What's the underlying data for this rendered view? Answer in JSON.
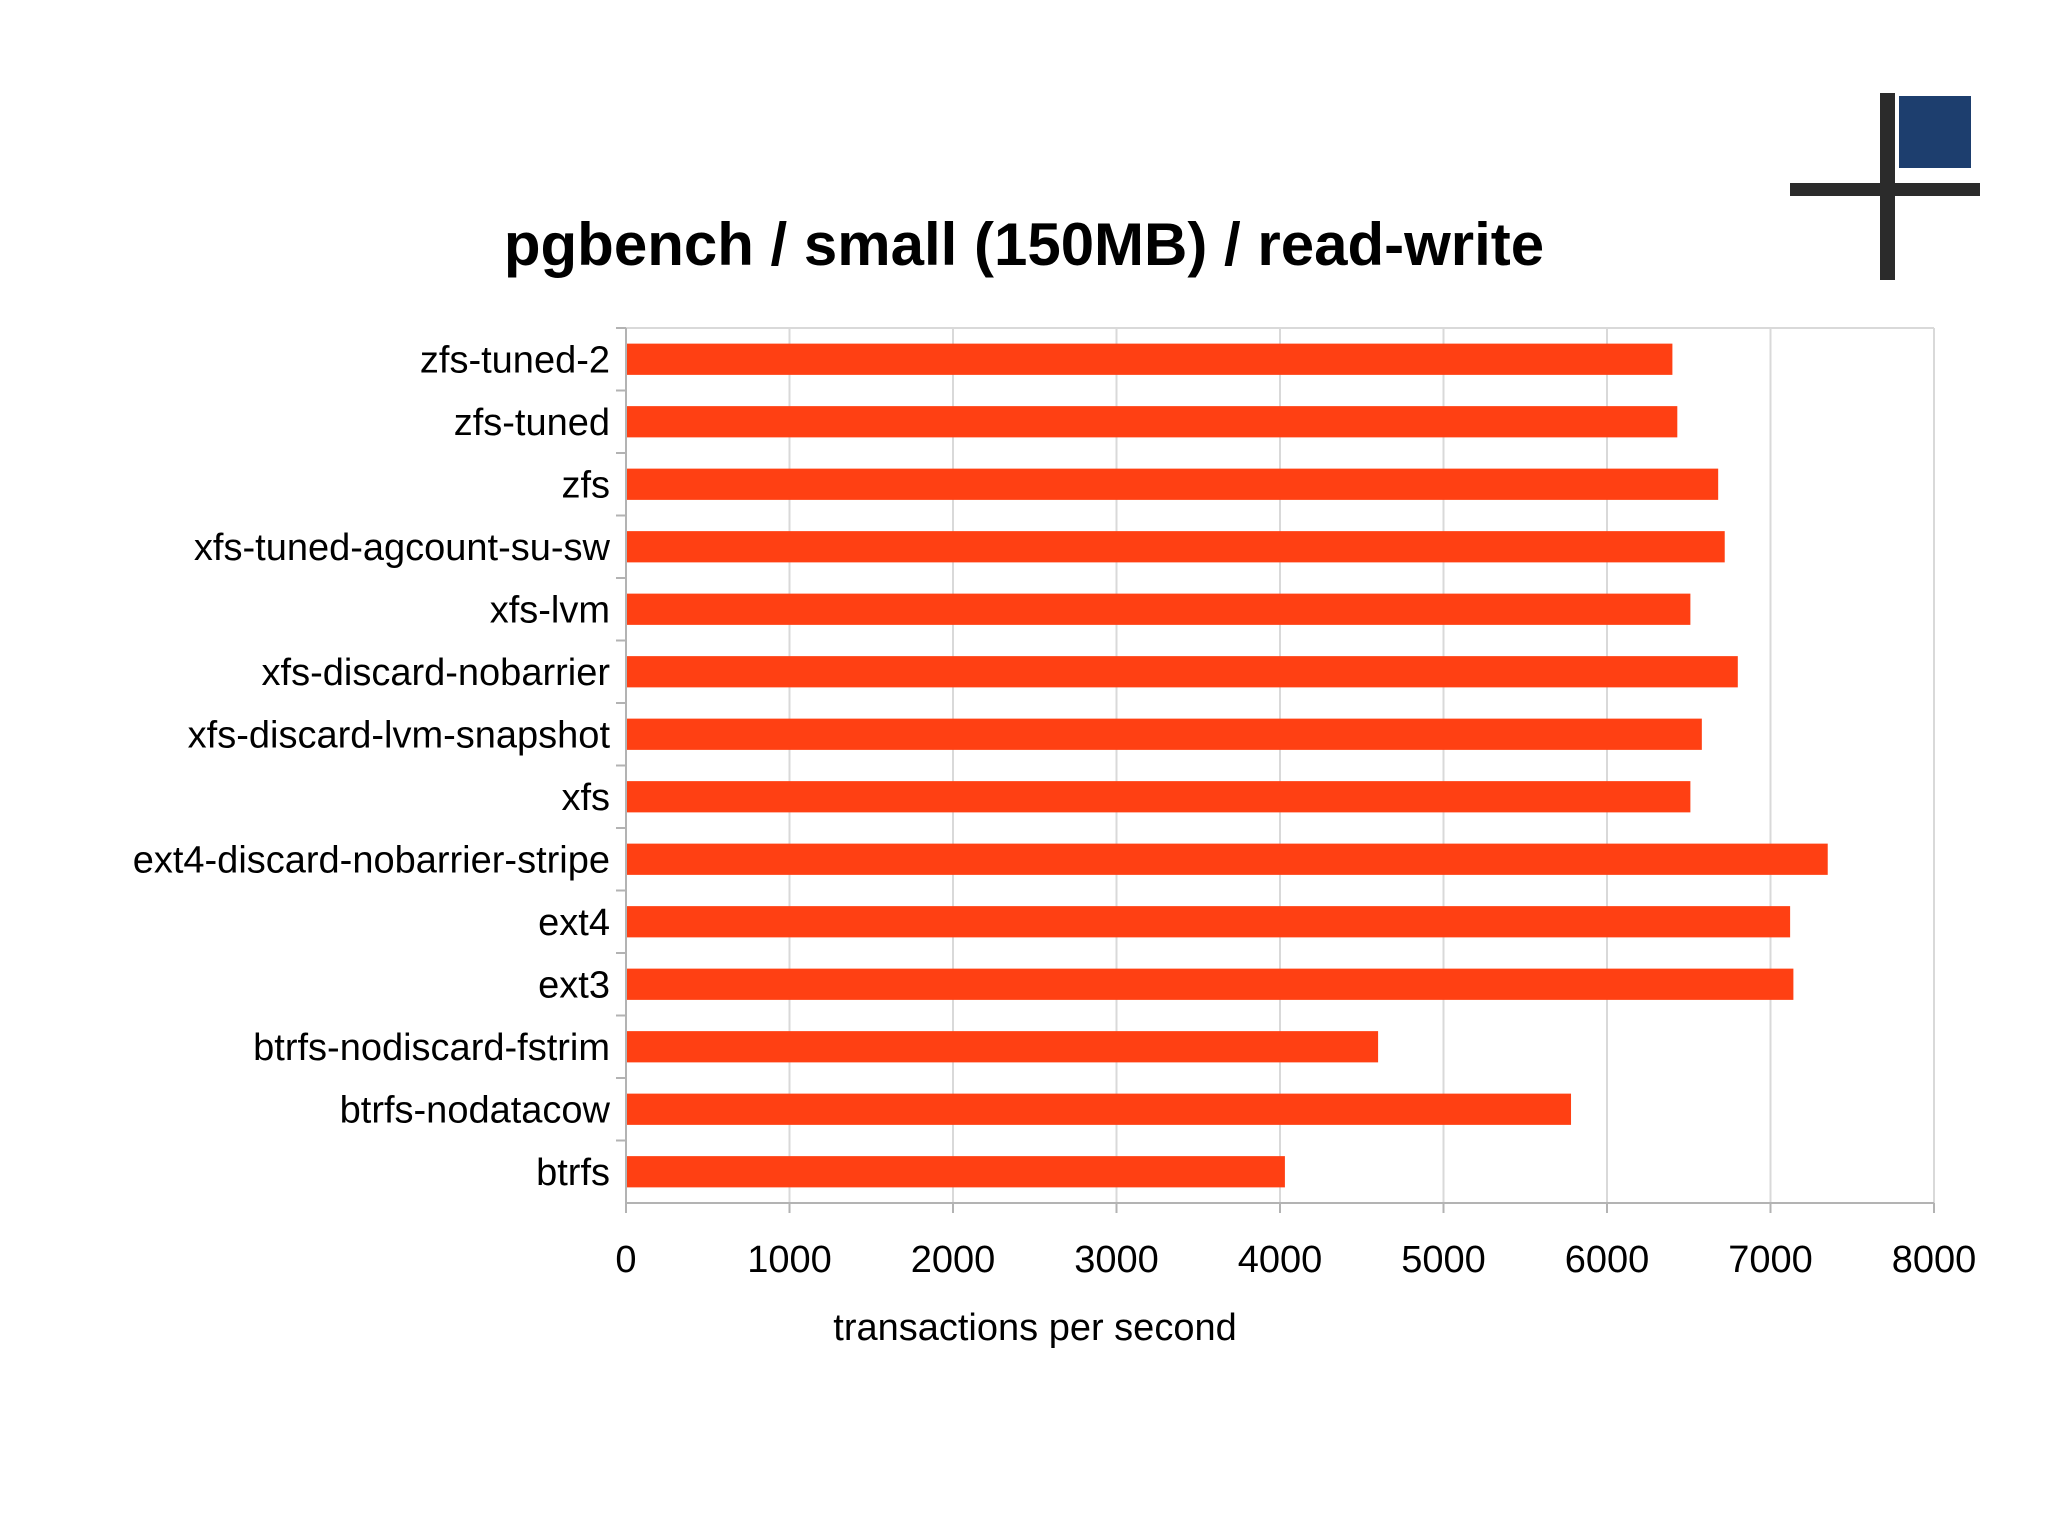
{
  "chart_data": {
    "type": "bar",
    "orientation": "horizontal",
    "title": "pgbench / small (150MB) / read-write",
    "xlabel": "transactions per second",
    "ylabel": "",
    "xlim": [
      0,
      8000
    ],
    "xticks": [
      0,
      1000,
      2000,
      3000,
      4000,
      5000,
      6000,
      7000,
      8000
    ],
    "grid": true,
    "legend": "none",
    "bar_color": "#ff4013",
    "categories": [
      "zfs-tuned-2",
      "zfs-tuned",
      "zfs",
      "xfs-tuned-agcount-su-sw",
      "xfs-lvm",
      "xfs-discard-nobarrier",
      "xfs-discard-lvm-snapshot",
      "xfs",
      "ext4-discard-nobarrier-stripe",
      "ext4",
      "ext3",
      "btrfs-nodiscard-fstrim",
      "btrfs-nodatacow",
      "btrfs"
    ],
    "values": [
      6400,
      6430,
      6680,
      6720,
      6510,
      6800,
      6580,
      6510,
      7350,
      7120,
      7140,
      4600,
      5780,
      4030
    ]
  },
  "colors": {
    "bar": "#ff4013",
    "grid": "#d9d9d9",
    "axis": "#b3b3b3",
    "logo_dark": "#2b2b2b",
    "logo_blue": "#1d3e6e"
  }
}
